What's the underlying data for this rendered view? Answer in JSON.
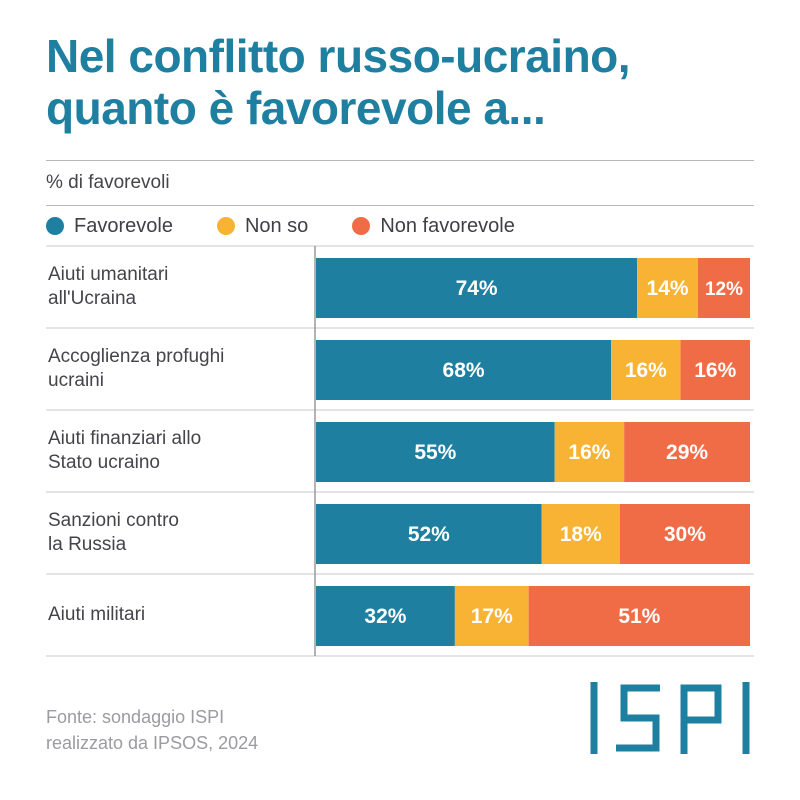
{
  "title_lines": [
    "Nel conflitto russo-ucraino,",
    "quanto è favorevole a..."
  ],
  "subtitle": "% di favorevoli",
  "legend": [
    {
      "label": "Favorevole",
      "color": "#1e7fa0"
    },
    {
      "label": "Non so",
      "color": "#f8b335"
    },
    {
      "label": "Non favorevole",
      "color": "#ef6c46"
    }
  ],
  "chart_data": {
    "type": "bar",
    "orientation": "horizontal",
    "stacked": true,
    "categories": [
      [
        "Aiuti umanitari",
        "all'Ucraina"
      ],
      [
        "Accoglienza profughi",
        "ucraini"
      ],
      [
        "Aiuti finanziari allo",
        "Stato ucraino"
      ],
      [
        "Sanzioni contro",
        "la Russia"
      ],
      [
        "Aiuti militari"
      ]
    ],
    "series": [
      {
        "name": "Favorevole",
        "color": "#1e7fa0",
        "values": [
          74,
          68,
          55,
          52,
          32
        ]
      },
      {
        "name": "Non so",
        "color": "#f8b335",
        "values": [
          14,
          16,
          16,
          18,
          17
        ]
      },
      {
        "name": "Non favorevole",
        "color": "#ef6c46",
        "values": [
          12,
          16,
          29,
          30,
          51
        ]
      }
    ],
    "value_suffix": "%",
    "xlim": [
      0,
      100
    ],
    "legend_position": "top-left"
  },
  "source_lines": [
    "Fonte: sondaggio ISPI",
    "realizzato da IPSOS, 2024"
  ],
  "logo": {
    "text": "ISPI",
    "color": "#1e7fa0"
  }
}
